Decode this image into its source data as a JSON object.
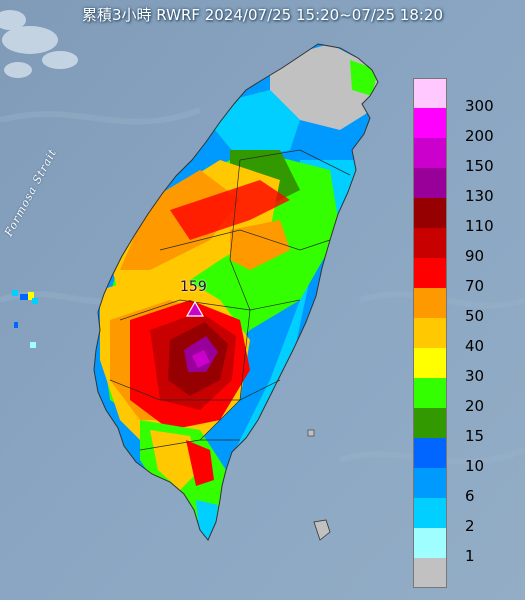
{
  "title": "累積3小時 RWRF 2024/07/25 15:20~07/25 18:20",
  "sea_label": "Formosa Strait",
  "max_value": "159",
  "legend": [
    {
      "label": "300",
      "color": "#ffc8ff"
    },
    {
      "label": "200",
      "color": "#ff00ff"
    },
    {
      "label": "150",
      "color": "#cc00cc"
    },
    {
      "label": "130",
      "color": "#990099"
    },
    {
      "label": "110",
      "color": "#960000"
    },
    {
      "label": "90",
      "color": "#c80000"
    },
    {
      "label": "70",
      "color": "#ff0000"
    },
    {
      "label": "50",
      "color": "#ff9900"
    },
    {
      "label": "40",
      "color": "#ffc800"
    },
    {
      "label": "30",
      "color": "#ffff00"
    },
    {
      "label": "20",
      "color": "#33ff00"
    },
    {
      "label": "15",
      "color": "#339900"
    },
    {
      "label": "10",
      "color": "#0066ff"
    },
    {
      "label": "6",
      "color": "#009aff"
    },
    {
      "label": "2",
      "color": "#00cfff"
    },
    {
      "label": "1",
      "color": "#9ffeff"
    },
    {
      "label": "",
      "color": "#c1c1c1"
    }
  ]
}
